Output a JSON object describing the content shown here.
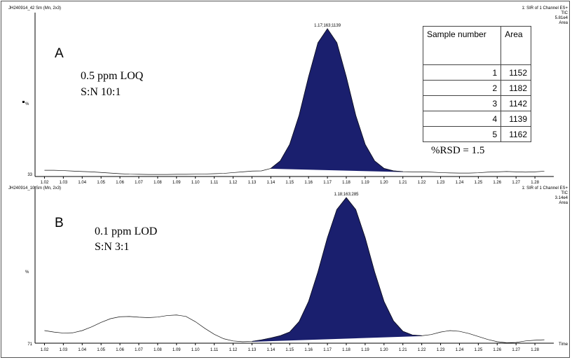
{
  "chart_data": [
    {
      "type": "line",
      "color": "#111111",
      "fill_color": "#1a1f6e",
      "header_left": "JH240914_42 Sm (Mn, 2x3)",
      "header_right": [
        "1: SIR of 1 Channel ES+",
        "TIC",
        "5.81e4",
        "Area"
      ],
      "panel_label": "A",
      "note_lines": [
        "0.5 ppm LOQ",
        "S:N 10:1"
      ],
      "extra_note": "%RSD = 1.5",
      "peak_label": "1.17;163;1139",
      "y_label": "%",
      "y_bottom_label": "33",
      "x": [
        1.02,
        1.025,
        1.03,
        1.035,
        1.04,
        1.045,
        1.05,
        1.055,
        1.06,
        1.065,
        1.07,
        1.075,
        1.08,
        1.085,
        1.09,
        1.095,
        1.1,
        1.105,
        1.11,
        1.115,
        1.12,
        1.125,
        1.13,
        1.135,
        1.14,
        1.145,
        1.15,
        1.155,
        1.16,
        1.165,
        1.17,
        1.175,
        1.18,
        1.185,
        1.19,
        1.195,
        1.2,
        1.205,
        1.21,
        1.215,
        1.22,
        1.225,
        1.23,
        1.235,
        1.24,
        1.245,
        1.25,
        1.255,
        1.26,
        1.265,
        1.27,
        1.275,
        1.28,
        1.285
      ],
      "values": [
        4,
        4,
        3.8,
        3.5,
        3.2,
        3,
        2.6,
        2.2,
        1.8,
        1.5,
        1.4,
        1.3,
        1.3,
        1.3,
        1.4,
        1.4,
        1.5,
        1.6,
        1.8,
        2,
        2.5,
        3,
        3.5,
        3.6,
        5.2,
        10,
        20.6,
        39.3,
        64,
        86,
        95,
        86,
        64,
        39.3,
        20.6,
        10,
        5.2,
        3.6,
        3.1,
        3,
        3,
        2.8,
        2.5,
        2.3,
        2.2,
        2.2,
        2.4,
        2.8,
        3,
        3.2,
        3,
        2.8,
        3,
        3.4
      ],
      "integration": [
        1.14,
        1.21
      ],
      "xlim": [
        1.015,
        1.29
      ],
      "ylim": [
        0,
        100
      ],
      "xticks": [
        1.02,
        1.03,
        1.04,
        1.05,
        1.06,
        1.07,
        1.08,
        1.09,
        {
          "value": 1.1,
          "label": "1.10"
        },
        1.11,
        1.12,
        1.13,
        1.14,
        1.15,
        1.16,
        1.17,
        1.18,
        1.19,
        {
          "value": 1.2,
          "label": "1.20"
        },
        1.21,
        1.22,
        1.23,
        1.24,
        1.25,
        1.26,
        1.27,
        1.28
      ],
      "table": {
        "columns": [
          "Sample number",
          "Area"
        ],
        "rows": [
          [
            "1",
            "1152"
          ],
          [
            "2",
            "1182"
          ],
          [
            "3",
            "1142"
          ],
          [
            "4",
            "1139"
          ],
          [
            "5",
            "1162"
          ]
        ]
      }
    },
    {
      "type": "line",
      "color": "#111111",
      "fill_color": "#1a1f6e",
      "header_left": "JH240914_10 Sm (Mn, 2x3)",
      "header_right": [
        "1: SIR of 1 Channel ES+",
        "TIC",
        "3.14e4",
        "Area"
      ],
      "panel_label": "B",
      "note_lines": [
        "0.1 ppm LOD",
        "S:N 3:1"
      ],
      "peak_label": "1.18;163;285",
      "y_label": "%",
      "y_bottom_label": "71",
      "x_label": "Time",
      "x": [
        1.02,
        1.025,
        1.03,
        1.035,
        1.04,
        1.045,
        1.05,
        1.055,
        1.06,
        1.065,
        1.07,
        1.075,
        1.08,
        1.085,
        1.09,
        1.095,
        1.1,
        1.105,
        1.11,
        1.115,
        1.12,
        1.125,
        1.13,
        1.135,
        1.14,
        1.145,
        1.15,
        1.155,
        1.16,
        1.165,
        1.17,
        1.175,
        1.18,
        1.185,
        1.19,
        1.195,
        1.2,
        1.205,
        1.21,
        1.215,
        1.22,
        1.225,
        1.23,
        1.235,
        1.24,
        1.245,
        1.25,
        1.255,
        1.26,
        1.265,
        1.27,
        1.275,
        1.28,
        1.285
      ],
      "values": [
        8.5,
        7.5,
        6.8,
        7,
        8.5,
        11,
        14,
        16.5,
        17.8,
        18,
        17.5,
        17.2,
        17.6,
        18.6,
        19,
        18,
        14.5,
        10,
        6,
        3,
        1.5,
        1,
        1.2,
        2.2,
        3.5,
        5,
        7.5,
        14.5,
        28,
        48,
        71,
        90,
        98,
        90,
        71,
        48,
        28,
        15,
        8,
        5.5,
        5,
        5.8,
        7.5,
        8.5,
        8,
        6.5,
        4.5,
        2.5,
        1,
        0.3,
        0.5,
        1.5,
        2,
        2.3
      ],
      "integration": [
        1.13,
        1.22
      ],
      "xlim": [
        1.015,
        1.29
      ],
      "ylim": [
        0,
        100
      ],
      "xticks": [
        1.02,
        1.03,
        1.04,
        1.05,
        1.06,
        1.07,
        1.08,
        1.09,
        {
          "value": 1.1,
          "label": "1.10"
        },
        1.11,
        1.12,
        1.13,
        1.14,
        1.15,
        1.16,
        1.17,
        1.18,
        1.19,
        {
          "value": 1.2,
          "label": "1.20"
        },
        1.21,
        1.22,
        1.23,
        1.24,
        1.25,
        1.26,
        1.27,
        1.28
      ]
    }
  ]
}
